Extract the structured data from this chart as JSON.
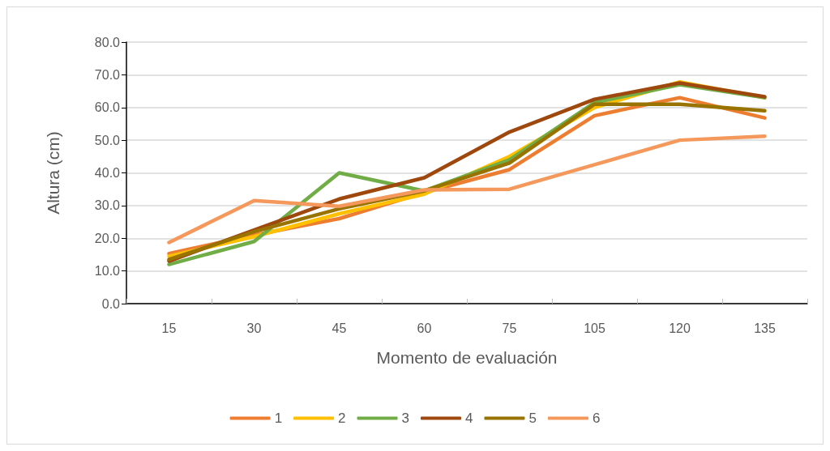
{
  "chart_data": {
    "type": "line",
    "xlabel": "Momento de evaluación",
    "ylabel": "Altura (cm)",
    "categories": [
      "15",
      "30",
      "45",
      "60",
      "75",
      "105",
      "120",
      "135"
    ],
    "ylim": [
      0,
      80
    ],
    "yticks": [
      {
        "value": 0,
        "label": "0.0"
      },
      {
        "value": 10,
        "label": "10.0"
      },
      {
        "value": 20,
        "label": "20.0"
      },
      {
        "value": 30,
        "label": "30.0"
      },
      {
        "value": 40,
        "label": "40.0"
      },
      {
        "value": 50,
        "label": "50.0"
      },
      {
        "value": 60,
        "label": "60.0"
      },
      {
        "value": 70,
        "label": "70.0"
      },
      {
        "value": 80,
        "label": "80.0"
      }
    ],
    "grid": "y",
    "legend": "bottom",
    "marker": "none",
    "line_style": "solid",
    "series": [
      {
        "name": "1",
        "color": "#ed7d31",
        "values": [
          15.3,
          21,
          26,
          34,
          41,
          57.5,
          63,
          56.8
        ]
      },
      {
        "name": "2",
        "color": "#ffc000",
        "values": [
          14.5,
          20.5,
          27.5,
          33.5,
          45,
          60,
          67.8,
          63
        ]
      },
      {
        "name": "3",
        "color": "#70ad47",
        "values": [
          12,
          19,
          40,
          34.5,
          44,
          61.5,
          67,
          63
        ]
      },
      {
        "name": "4",
        "color": "#9e480e",
        "values": [
          13,
          22.5,
          32,
          38.5,
          52.5,
          62.5,
          67.5,
          63.3
        ]
      },
      {
        "name": "5",
        "color": "#997300",
        "values": [
          13.5,
          22,
          29,
          34.5,
          43,
          61,
          61,
          59
        ]
      },
      {
        "name": "6",
        "color": "#f4995b",
        "values": [
          18.7,
          31.5,
          29.8,
          34.8,
          35,
          42.5,
          50,
          51.2
        ]
      }
    ]
  }
}
